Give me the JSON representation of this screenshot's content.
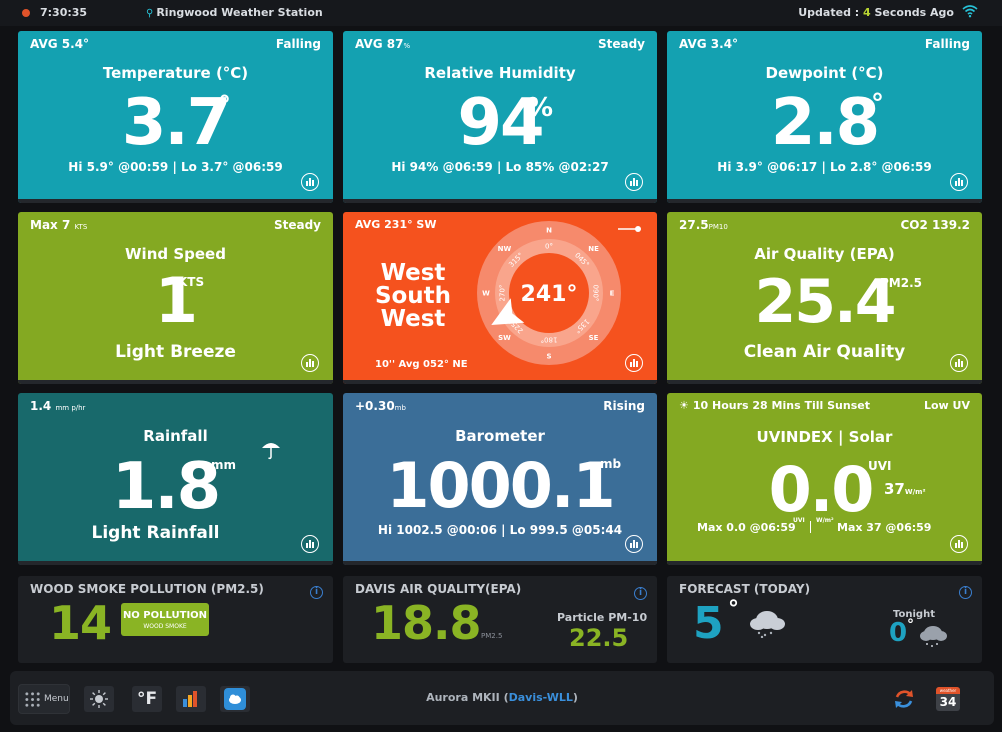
{
  "topbar": {
    "time": "7:30:35",
    "station": "Ringwood Weather Station",
    "updated_prefix": "Updated : ",
    "updated_num": "4",
    "updated_suffix": " Seconds Ago",
    "status_color": "#e0532a"
  },
  "temperature": {
    "avg": "AVG 5.4°",
    "trend": "Falling",
    "title": "Temperature (°C)",
    "value": "3.7",
    "unit": "°",
    "hilo": "Hi 5.9° @00:59 | Lo 3.7° @06:59"
  },
  "humidity": {
    "avg": "AVG 87",
    "avg_unit": "%",
    "trend": "Steady",
    "title": "Relative Humidity",
    "value": "94",
    "unit": "%",
    "hilo": "Hi 94% @06:59 | Lo 85% @02:27"
  },
  "dewpoint": {
    "avg": "AVG 3.4°",
    "trend": "Falling",
    "title": "Dewpoint (°C)",
    "value": "2.8",
    "unit": "°",
    "hilo": "Hi 3.9° @06:17 | Lo 2.8° @06:59"
  },
  "wind_speed": {
    "max": "Max 7",
    "max_unit": "KTS",
    "trend": "Steady",
    "title": "Wind Speed",
    "value": "1",
    "unit": "KTS",
    "desc": "Light Breeze"
  },
  "wind_dir": {
    "avg": "AVG 231° SW",
    "name_line1": "West",
    "name_line2": "South",
    "name_line3": "West",
    "degrees": "241°",
    "direction_deg": 241,
    "footer": "10'' Avg 052° NE",
    "compass_points": [
      "N",
      "NE",
      "E",
      "SE",
      "S",
      "SW",
      "W",
      "NW"
    ],
    "ticks": [
      "0°",
      "045°",
      "090°",
      "135°",
      "180°",
      "225°",
      "270°",
      "315°"
    ],
    "bearing_small": "VBL"
  },
  "air_quality": {
    "pm10": "27.5",
    "pm10_unit": "PM10",
    "co2": "CO2 139.2",
    "title": "Air Quality (EPA)",
    "value": "25.4",
    "unit": "PM2.5",
    "desc": "Clean Air Quality"
  },
  "rainfall": {
    "rate": "1.4",
    "rate_unit": "mm p/hr",
    "title": "Rainfall",
    "value": "1.8",
    "unit": "mm",
    "desc": "Light Rainfall"
  },
  "barometer": {
    "change": "+0.30",
    "change_unit": "mb",
    "trend": "Rising",
    "title": "Barometer",
    "value": "1000.1",
    "unit": "mb",
    "hilo": "Hi 1002.5 @00:06 | Lo 999.5 @05:44"
  },
  "uv": {
    "sunset": "10 Hours 28 Mins Till Sunset",
    "level": "Low UV",
    "title": "UVINDEX | Solar",
    "value": "0.0",
    "unit": "UVI",
    "solar": "37",
    "solar_unit": "W/m²",
    "max_uv": "Max 0.0 @06:59",
    "max_uv_unit": "UVI",
    "max_solar_unit": "W/m²",
    "max_solar": "Max 37 @06:59"
  },
  "wood_smoke": {
    "title": "WOOD SMOKE POLLUTION (PM2.5)",
    "value": "14",
    "badge": "NO POLLUTION",
    "badge_sub": "WOOD SMOKE"
  },
  "davis_aq": {
    "title": "DAVIS AIR QUALITY(EPA)",
    "value": "18.8",
    "unit": "PM2.5",
    "pm10_label": "Particle PM-10",
    "pm10_value": "22.5"
  },
  "forecast": {
    "title": "FORECAST (TODAY)",
    "temp": "5",
    "deg": "°",
    "tonight_label": "Tonight",
    "tonight_temp": "0",
    "tonight_deg": "°"
  },
  "footer": {
    "menu_label": "Menu",
    "unit_label": "°F",
    "device": "Aurora MKII (",
    "device_link": "Davis-WLL",
    "device_end": ")",
    "calendar_month": "weather",
    "calendar_day": "34"
  }
}
